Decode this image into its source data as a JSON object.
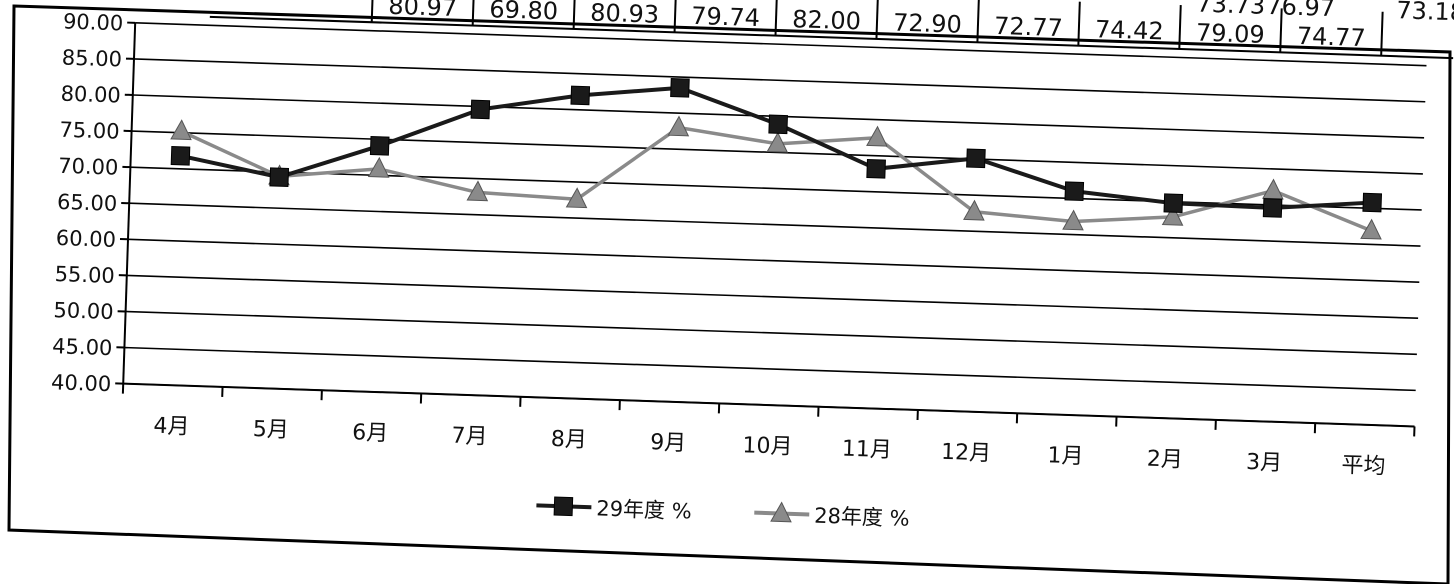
{
  "table_fragment": {
    "cells": [
      "80.97",
      "69.80",
      "80.93",
      "79.74",
      "82.00",
      "72.90",
      "72.77",
      "74.42",
      "79.09",
      "74.77"
    ],
    "partial_cells": [
      "73.73",
      "76.97",
      "73.18"
    ]
  },
  "chart_data": {
    "type": "line",
    "categories": [
      "4月",
      "5月",
      "6月",
      "7月",
      "8月",
      "9月",
      "10月",
      "11月",
      "12月",
      "1月",
      "2月",
      "3月",
      "平均"
    ],
    "ylim": [
      40,
      90
    ],
    "yticks": [
      "90.00",
      "85.00",
      "80.00",
      "75.00",
      "70.00",
      "65.00",
      "60.00",
      "55.00",
      "50.00",
      "45.00",
      "40.00"
    ],
    "grid": true,
    "legend_position": "bottom",
    "series": [
      {
        "name": "29年度 %",
        "marker": "square",
        "color": "#1a1a1a",
        "values": [
          71.8,
          69.3,
          74.1,
          79.6,
          82.0,
          83.5,
          78.9,
          73.2,
          75.1,
          71.0,
          69.8,
          69.6,
          70.8
        ]
      },
      {
        "name": "28年度 %",
        "marker": "triangle",
        "color": "#8a8a8a",
        "values": [
          75.2,
          69.4,
          70.9,
          68.1,
          67.6,
          78.0,
          76.2,
          77.5,
          67.7,
          66.8,
          67.9,
          72.0,
          66.9
        ]
      }
    ]
  }
}
